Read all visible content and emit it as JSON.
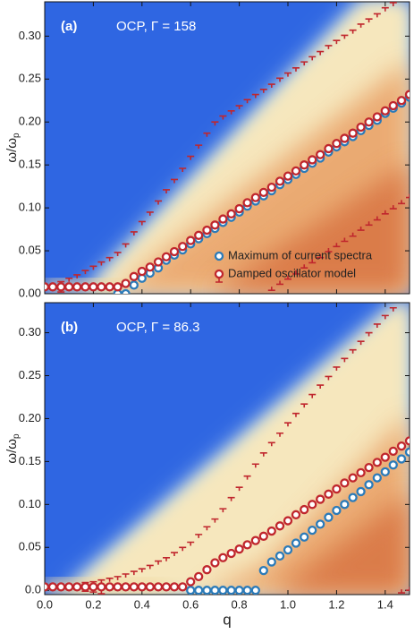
{
  "chart_data": [
    {
      "type": "scatter",
      "panel_label": "(a)",
      "annotation": "OCP, Γ = 158",
      "legend": "lower right",
      "ylabel": {
        "text": "ω/ω",
        "subscript": "p"
      },
      "xlim": [
        0,
        1.5
      ],
      "xticks": [
        0,
        0.2,
        0.4,
        0.6,
        0.8,
        1,
        1.2,
        1.4
      ],
      "ylim": [
        0,
        0.34
      ],
      "yticks": [
        {
          "value": 0,
          "label": "0.00"
        },
        0.05,
        {
          "value": 0.1,
          "label": "0.10"
        },
        0.15,
        {
          "value": 0.2,
          "label": "0.20"
        },
        0.25,
        {
          "value": 0.3,
          "label": "0.30"
        }
      ],
      "x": [
        0,
        0.033,
        0.067,
        0.1,
        0.133,
        0.167,
        0.2,
        0.233,
        0.267,
        0.3,
        0.333,
        0.367,
        0.4,
        0.433,
        0.467,
        0.5,
        0.533,
        0.567,
        0.6,
        0.633,
        0.667,
        0.7,
        0.733,
        0.767,
        0.8,
        0.833,
        0.867,
        0.9,
        0.933,
        0.967,
        1.0,
        1.033,
        1.067,
        1.1,
        1.133,
        1.167,
        1.2,
        1.233,
        1.267,
        1.3,
        1.333,
        1.367,
        1.4,
        1.433,
        1.467,
        1.5
      ],
      "series": [
        {
          "name": "Maximum of current spectra",
          "color": "#2b7bb9",
          "values": [
            null,
            null,
            null,
            null,
            null,
            null,
            null,
            null,
            null,
            0,
            0,
            0.01,
            0.018,
            0.024,
            0.03,
            0.039,
            0.045,
            0.051,
            0.058,
            0.064,
            0.07,
            0.076,
            0.083,
            0.089,
            0.095,
            0.102,
            0.108,
            0.114,
            0.12,
            0.127,
            0.133,
            0.139,
            0.146,
            0.152,
            0.158,
            0.165,
            0.171,
            0.177,
            0.183,
            0.19,
            0.196,
            0.202,
            0.21,
            0.216,
            0.222,
            0.229
          ]
        },
        {
          "name": "Damped oscillator model",
          "color": "#c0262d",
          "values": [
            0.008,
            0.008,
            0.008,
            0.008,
            0.008,
            0.008,
            0.008,
            0.008,
            0.008,
            0.008,
            0.012,
            0.02,
            0.026,
            0.031,
            0.037,
            0.043,
            0.049,
            0.055,
            0.062,
            0.068,
            0.074,
            0.08,
            0.087,
            0.093,
            0.099,
            0.106,
            0.112,
            0.118,
            0.124,
            0.131,
            0.137,
            0.143,
            0.15,
            0.156,
            0.162,
            0.169,
            0.175,
            0.181,
            0.187,
            0.194,
            0.2,
            0.206,
            0.213,
            0.219,
            0.225,
            0.232
          ],
          "errors": [
            0,
            0.002,
            0.006,
            0.01,
            0.014,
            0.019,
            0.024,
            0.029,
            0.034,
            0.04,
            0.046,
            0.052,
            0.058,
            0.064,
            0.071,
            0.078,
            0.084,
            0.091,
            0.098,
            0.105,
            0.113,
            0.12,
            0.12,
            0.12,
            0.12,
            0.12,
            0.12,
            0.12,
            0.12,
            0.12,
            0.12,
            0.12,
            0.12,
            0.12,
            0.12,
            0.12,
            0.12,
            0.12,
            0.12,
            0.12,
            0.12,
            0.12,
            0.12,
            0.12,
            0.12,
            0.12
          ]
        }
      ]
    },
    {
      "type": "scatter",
      "panel_label": "(b)",
      "annotation": "OCP, Γ = 86.3",
      "xlabel": "q",
      "ylabel": {
        "text": "ω/ω",
        "subscript": "p"
      },
      "xlim": [
        0,
        1.5
      ],
      "xticks": [
        {
          "value": 0,
          "label": "0.0"
        },
        0.2,
        0.4,
        0.6,
        0.8,
        {
          "value": 1,
          "label": "1.0"
        },
        1.2,
        1.4
      ],
      "ylim": [
        -0.005,
        0.335
      ],
      "yticks": [
        {
          "value": 0,
          "label": "0.0"
        },
        0.05,
        {
          "value": 0.1,
          "label": "0.10"
        },
        0.15,
        {
          "value": 0.2,
          "label": "0.20"
        },
        0.25,
        {
          "value": 0.3,
          "label": "0.30"
        }
      ],
      "x": [
        0,
        0.033,
        0.067,
        0.1,
        0.133,
        0.167,
        0.2,
        0.233,
        0.267,
        0.3,
        0.333,
        0.367,
        0.4,
        0.433,
        0.467,
        0.5,
        0.533,
        0.567,
        0.6,
        0.633,
        0.667,
        0.7,
        0.733,
        0.767,
        0.8,
        0.833,
        0.867,
        0.9,
        0.933,
        0.967,
        1.0,
        1.033,
        1.067,
        1.1,
        1.133,
        1.167,
        1.2,
        1.233,
        1.267,
        1.3,
        1.333,
        1.367,
        1.4,
        1.433,
        1.467,
        1.5
      ],
      "series": [
        {
          "color": "#2b7bb9",
          "values": [
            null,
            null,
            null,
            null,
            null,
            null,
            null,
            null,
            null,
            null,
            null,
            null,
            null,
            null,
            null,
            null,
            null,
            null,
            0,
            0,
            0,
            0,
            0,
            0,
            0,
            0,
            0,
            0.023,
            0.033,
            0.04,
            0.047,
            0.055,
            0.062,
            0.07,
            0.077,
            0.085,
            0.093,
            0.1,
            0.108,
            0.115,
            0.123,
            0.131,
            0.138,
            0.146,
            0.153,
            0.161
          ]
        },
        {
          "color": "#c0262d",
          "values": [
            0.004,
            0.004,
            0.004,
            0.004,
            0.004,
            0.004,
            0.004,
            0.004,
            0.004,
            0.004,
            0.004,
            0.004,
            0.004,
            0.004,
            0.004,
            0.004,
            0.004,
            0.004,
            0.01,
            0.016,
            0.024,
            0.032,
            0.038,
            0.043,
            0.048,
            0.053,
            0.058,
            0.063,
            0.069,
            0.075,
            0.081,
            0.088,
            0.094,
            0.1,
            0.106,
            0.112,
            0.118,
            0.125,
            0.131,
            0.137,
            0.143,
            0.149,
            0.155,
            0.162,
            0.168,
            0.174
          ],
          "errors": [
            0,
            0.001,
            0.001,
            0.002,
            0.003,
            0.005,
            0.006,
            0.008,
            0.01,
            0.012,
            0.015,
            0.018,
            0.021,
            0.025,
            0.03,
            0.034,
            0.04,
            0.046,
            0.046,
            0.049,
            0.05,
            0.051,
            0.057,
            0.065,
            0.072,
            0.08,
            0.089,
            0.097,
            0.103,
            0.108,
            0.114,
            0.118,
            0.123,
            0.128,
            0.133,
            0.137,
            0.142,
            0.145,
            0.149,
            0.153,
            0.157,
            0.161,
            0.165,
            0.167,
            0.171,
            0.174
          ]
        }
      ]
    }
  ]
}
